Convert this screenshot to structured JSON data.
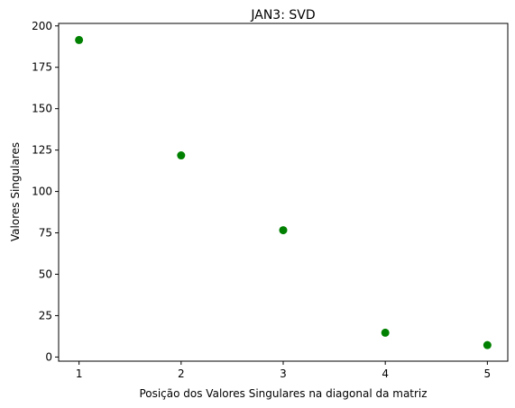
{
  "chart_data": {
    "type": "scatter",
    "title": "JAN3: SVD",
    "xlabel": "Posição dos Valores Singulares na diagonal da matriz",
    "ylabel": "Valores Singulares",
    "x": [
      1,
      2,
      3,
      4,
      5
    ],
    "y": [
      191.5,
      121.8,
      76.6,
      14.7,
      7.2
    ],
    "xticks": [
      1,
      2,
      3,
      4,
      5
    ],
    "yticks": [
      0,
      25,
      50,
      75,
      100,
      125,
      150,
      175,
      200
    ],
    "xlim": [
      0.8,
      5.2
    ],
    "ylim": [
      -2.5,
      201.5
    ],
    "marker_color": "#008000",
    "grid": false
  }
}
